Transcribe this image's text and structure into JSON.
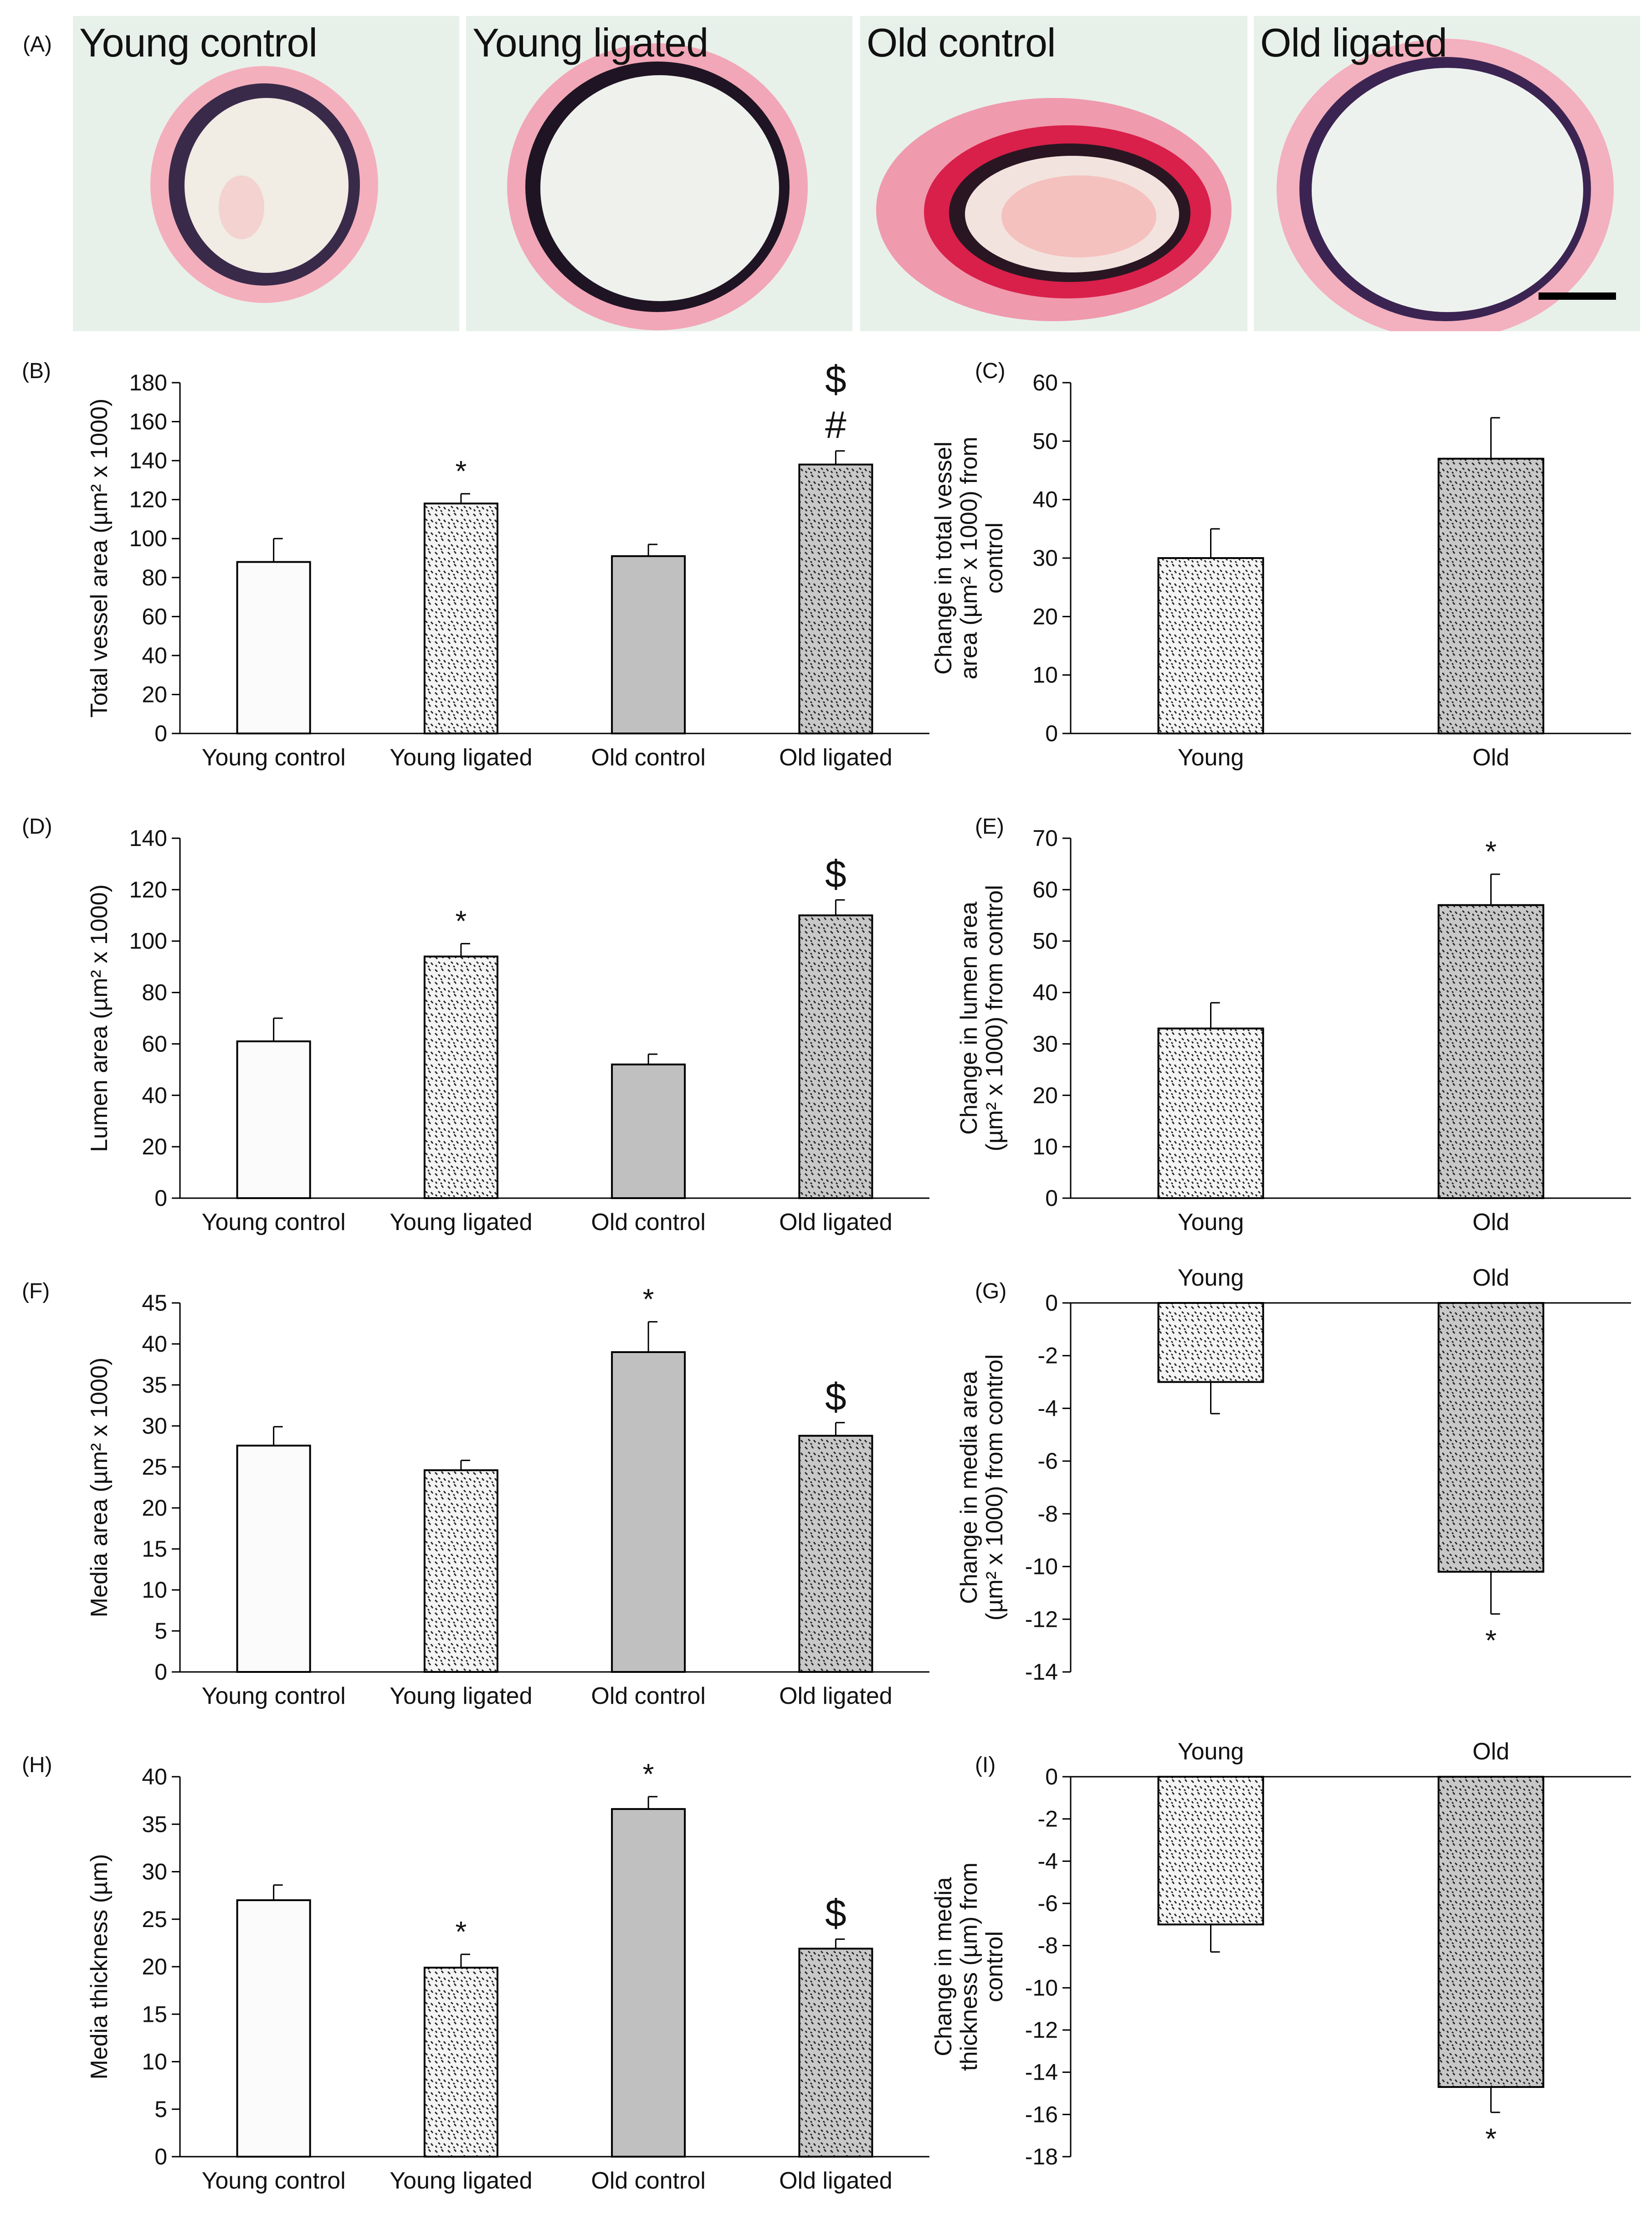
{
  "figure": {
    "panel_A_letter": "(A)",
    "micrographs": [
      {
        "label": "Young control"
      },
      {
        "label": "Young ligated"
      },
      {
        "label": "Old control"
      },
      {
        "label": "Old ligated"
      }
    ]
  },
  "colors": {
    "young_fill": "#fbfbfb",
    "ligated_young_fill": "#f4f4f4",
    "old_fill": "#c0c0c0",
    "old_ligated_fill": "#c8c8c8",
    "stain_pink": "#e8506e",
    "stain_dark": "#3a2a4a",
    "bar_edge": "#000000"
  },
  "chart_data": [
    {
      "id": "B",
      "letter": "(B)",
      "type": "bar",
      "ylabel": "Total vessel area (µm² x 1000)",
      "categories": [
        "Young control",
        "Young ligated",
        "Old control",
        "Old ligated"
      ],
      "values": [
        88,
        118,
        91,
        138
      ],
      "errors": [
        12,
        5,
        6,
        7
      ],
      "fills": [
        "plain",
        "dots",
        "gray",
        "graydots"
      ],
      "annotations": [
        "",
        "*",
        "",
        "$\n#"
      ],
      "ylim": [
        0,
        180
      ],
      "ytick_step": 20
    },
    {
      "id": "C",
      "letter": "(C)",
      "type": "bar",
      "ylabel": "Change in total vessel area (µm² x 1000) from control",
      "ylabel_lines": [
        "Change in total vessel",
        "area (µm² x 1000) from",
        "control"
      ],
      "categories": [
        "Young",
        "Old"
      ],
      "values": [
        30,
        47
      ],
      "errors": [
        5,
        7
      ],
      "fills": [
        "dots",
        "graydots"
      ],
      "annotations": [
        "",
        ""
      ],
      "ylim": [
        0,
        60
      ],
      "ytick_step": 10
    },
    {
      "id": "D",
      "letter": "(D)",
      "type": "bar",
      "ylabel": "Lumen area (µm² x 1000)",
      "categories": [
        "Young control",
        "Young ligated",
        "Old control",
        "Old ligated"
      ],
      "values": [
        61,
        94,
        52,
        110
      ],
      "errors": [
        9,
        5,
        4,
        6
      ],
      "fills": [
        "plain",
        "dots",
        "gray",
        "graydots"
      ],
      "annotations": [
        "",
        "*",
        "",
        "$"
      ],
      "ylim": [
        0,
        140
      ],
      "ytick_step": 20
    },
    {
      "id": "E",
      "letter": "(E)",
      "type": "bar",
      "ylabel": "Change in lumen area (µm² x 1000) from control",
      "ylabel_lines": [
        "Change in lumen area",
        "(µm² x 1000) from control"
      ],
      "categories": [
        "Young",
        "Old"
      ],
      "values": [
        33,
        57
      ],
      "errors": [
        5,
        6
      ],
      "fills": [
        "dots",
        "graydots"
      ],
      "annotations": [
        "",
        "*"
      ],
      "ylim": [
        0,
        70
      ],
      "ytick_step": 10
    },
    {
      "id": "F",
      "letter": "(F)",
      "type": "bar",
      "ylabel": "Media area (µm² x 1000)",
      "categories": [
        "Young control",
        "Young ligated",
        "Old control",
        "Old ligated"
      ],
      "values": [
        27.6,
        24.6,
        39.0,
        28.8
      ],
      "errors": [
        2.3,
        1.2,
        3.7,
        1.6
      ],
      "fills": [
        "plain",
        "dots",
        "gray",
        "graydots"
      ],
      "annotations": [
        "",
        "",
        "*",
        "$"
      ],
      "ylim": [
        0,
        45
      ],
      "ytick_step": 5
    },
    {
      "id": "G",
      "letter": "(G)",
      "type": "bar",
      "ylabel": "Change in media area (µm² x 1000) from control",
      "ylabel_lines": [
        "Change in media area",
        "(µm² x 1000) from control"
      ],
      "categories": [
        "Young",
        "Old"
      ],
      "values": [
        -3.0,
        -10.2
      ],
      "errors": [
        1.2,
        1.6
      ],
      "fills": [
        "dots",
        "graydots"
      ],
      "annotations": [
        "",
        "*"
      ],
      "ylim": [
        -14,
        0
      ],
      "ytick_step": 2
    },
    {
      "id": "H",
      "letter": "(H)",
      "type": "bar",
      "ylabel": "Media thickness (µm)",
      "categories": [
        "Young control",
        "Young ligated",
        "Old control",
        "Old ligated"
      ],
      "values": [
        27.0,
        19.9,
        36.6,
        21.9
      ],
      "errors": [
        1.6,
        1.4,
        1.3,
        1.0
      ],
      "fills": [
        "plain",
        "dots",
        "gray",
        "graydots"
      ],
      "annotations": [
        "",
        "*",
        "*",
        "$"
      ],
      "ylim": [
        0,
        40
      ],
      "ytick_step": 5
    },
    {
      "id": "I",
      "letter": "(I)",
      "type": "bar",
      "ylabel": "Change in media thickness (µm) from control",
      "ylabel_lines": [
        "Change in media",
        "thickness (µm) from",
        "control"
      ],
      "categories": [
        "Young",
        "Old"
      ],
      "values": [
        -7.0,
        -14.7
      ],
      "errors": [
        1.3,
        1.2
      ],
      "fills": [
        "dots",
        "graydots"
      ],
      "annotations": [
        "",
        "*"
      ],
      "ylim": [
        -18,
        0
      ],
      "ytick_step": 2
    }
  ]
}
